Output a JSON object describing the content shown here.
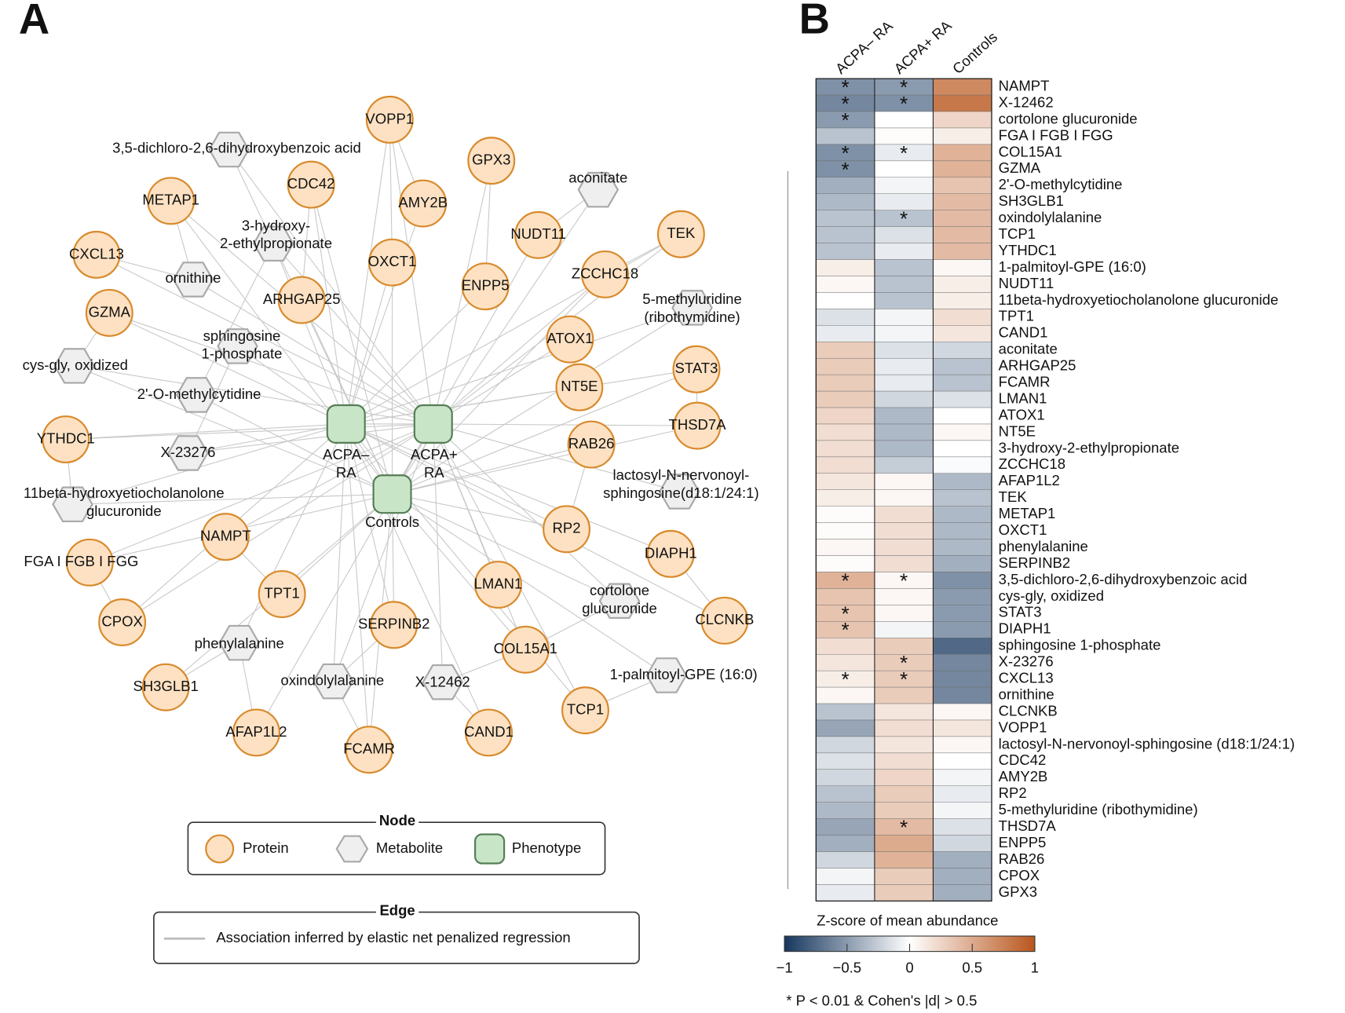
{
  "panel_a": {
    "label": "A",
    "node_styles": {
      "protein": {
        "fill": "#fde1c2",
        "stroke": "#d88a2c"
      },
      "metabolite": {
        "fill": "#efefef",
        "stroke": "#a9a9a9"
      },
      "phenotype": {
        "fill": "#c9e5c8",
        "stroke": "#557d55"
      }
    },
    "nodes": [
      {
        "label": [
          "VOPP1"
        ],
        "kind": "protein"
      },
      {
        "label": [
          "GPX3"
        ],
        "kind": "protein"
      },
      {
        "label": [
          "CDC42"
        ],
        "kind": "protein"
      },
      {
        "label": [
          "AMY2B"
        ],
        "kind": "protein"
      },
      {
        "label": [
          "METAP1"
        ],
        "kind": "protein"
      },
      {
        "label": [
          "NUDT11"
        ],
        "kind": "protein"
      },
      {
        "label": [
          "TEK"
        ],
        "kind": "protein"
      },
      {
        "label": [
          "CXCL13"
        ],
        "kind": "protein"
      },
      {
        "label": [
          "OXCT1"
        ],
        "kind": "protein"
      },
      {
        "label": [
          "ENPP5"
        ],
        "kind": "protein"
      },
      {
        "label": [
          "ZCCHC18"
        ],
        "kind": "protein"
      },
      {
        "label": [
          "ARHGAP25"
        ],
        "kind": "protein"
      },
      {
        "label": [
          "GZMA"
        ],
        "kind": "protein"
      },
      {
        "label": [
          "ATOX1"
        ],
        "kind": "protein"
      },
      {
        "label": [
          "STAT3"
        ],
        "kind": "protein"
      },
      {
        "label": [
          "NT5E"
        ],
        "kind": "protein"
      },
      {
        "label": [
          "THSD7A"
        ],
        "kind": "protein"
      },
      {
        "label": [
          "RAB26"
        ],
        "kind": "protein"
      },
      {
        "label": [
          "YTHDC1"
        ],
        "kind": "protein"
      },
      {
        "label": [
          "NAMPT"
        ],
        "kind": "protein"
      },
      {
        "label": [
          "RP2"
        ],
        "kind": "protein"
      },
      {
        "label": [
          "DIAPH1"
        ],
        "kind": "protein"
      },
      {
        "label": [
          "FGA I FGB I FGG"
        ],
        "kind": "protein"
      },
      {
        "label": [
          "TPT1"
        ],
        "kind": "protein"
      },
      {
        "label": [
          "CPOX"
        ],
        "kind": "protein"
      },
      {
        "label": [
          "LMAN1"
        ],
        "kind": "protein"
      },
      {
        "label": [
          "SERPINB2"
        ],
        "kind": "protein"
      },
      {
        "label": [
          "CLCNKB"
        ],
        "kind": "protein"
      },
      {
        "label": [
          "COL15A1"
        ],
        "kind": "protein"
      },
      {
        "label": [
          "SH3GLB1"
        ],
        "kind": "protein"
      },
      {
        "label": [
          "TCP1"
        ],
        "kind": "protein"
      },
      {
        "label": [
          "AFAP1L2"
        ],
        "kind": "protein"
      },
      {
        "label": [
          "FCAMR"
        ],
        "kind": "protein"
      },
      {
        "label": [
          "CAND1"
        ],
        "kind": "protein"
      },
      {
        "label": [
          "3,5-dichloro-2,6-dihydroxybenzoic acid"
        ],
        "kind": "metabolite"
      },
      {
        "label": [
          "aconitate"
        ],
        "kind": "metabolite"
      },
      {
        "label": [
          "3-hydroxy-",
          "2-ethylpropionate"
        ],
        "kind": "metabolite"
      },
      {
        "label": [
          "ornithine"
        ],
        "kind": "metabolite"
      },
      {
        "label": [
          "5-methyluridine",
          "(ribothymidine)"
        ],
        "kind": "metabolite"
      },
      {
        "label": [
          "sphingosine",
          "1-phosphate"
        ],
        "kind": "metabolite"
      },
      {
        "label": [
          "cys-gly, oxidized"
        ],
        "kind": "metabolite"
      },
      {
        "label": [
          "2'-O-methylcytidine"
        ],
        "kind": "metabolite"
      },
      {
        "label": [
          "X-23276"
        ],
        "kind": "metabolite"
      },
      {
        "label": [
          "lactosyl-N-nervonoyl-",
          "sphingosine(d18:1/24:1)"
        ],
        "kind": "metabolite"
      },
      {
        "label": [
          "11beta-hydroxyetiocholanolone",
          "glucuronide"
        ],
        "kind": "metabolite"
      },
      {
        "label": [
          "phenylalanine"
        ],
        "kind": "metabolite"
      },
      {
        "label": [
          "cortolone",
          "glucuronide"
        ],
        "kind": "metabolite"
      },
      {
        "label": [
          "1-palmitoyl-GPE (16:0)"
        ],
        "kind": "metabolite"
      },
      {
        "label": [
          "oxindolylalanine"
        ],
        "kind": "metabolite"
      },
      {
        "label": [
          "X-12462"
        ],
        "kind": "metabolite"
      },
      {
        "label": [
          "ACPA–",
          "RA"
        ],
        "kind": "phenotype"
      },
      {
        "label": [
          "ACPA+",
          "RA"
        ],
        "kind": "phenotype"
      },
      {
        "label": [
          "Controls"
        ],
        "kind": "phenotype"
      }
    ],
    "legend": {
      "node_title": "Node",
      "node_items": [
        "Protein",
        "Metabolite",
        "Phenotype"
      ],
      "edge_title": "Edge",
      "edge_item": "Association inferred by elastic net penalized regression"
    }
  },
  "chart_data": {
    "type": "heatmap",
    "panel_label": "B",
    "columns": [
      "ACPA– RA",
      "ACPA+ RA",
      "Controls"
    ],
    "rows": [
      "NAMPT",
      "X-12462",
      "cortolone glucuronide",
      "FGA I FGB I FGG",
      "COL15A1",
      "GZMA",
      "2'-O-methylcytidine",
      "SH3GLB1",
      "oxindolylalanine",
      "TCP1",
      "YTHDC1",
      "1-palmitoyl-GPE (16:0)",
      "NUDT11",
      "11beta-hydroxyetiocholanolone glucuronide",
      "TPT1",
      "CAND1",
      "aconitate",
      "ARHGAP25",
      "FCAMR",
      "LMAN1",
      "ATOX1",
      "NT5E",
      "3-hydroxy-2-ethylpropionate",
      "ZCCHC18",
      "AFAP1L2",
      "TEK",
      "METAP1",
      "OXCT1",
      "phenylalanine",
      "SERPINB2",
      "3,5-dichloro-2,6-dihydroxybenzoic acid",
      "cys-gly, oxidized",
      "STAT3",
      "DIAPH1",
      "sphingosine 1-phosphate",
      "X-23276",
      "CXCL13",
      "ornithine",
      "CLCNKB",
      "VOPP1",
      "lactosyl-N-nervonoyl-sphingosine (d18:1/24:1)",
      "CDC42",
      "AMY2B",
      "RP2",
      "5-methyluridine (ribothymidine)",
      "THSD7A",
      "ENPP5",
      "RAB26",
      "CPOX",
      "GPX3"
    ],
    "values": [
      [
        -0.55,
        -0.5,
        0.7
      ],
      [
        -0.6,
        -0.55,
        0.8
      ],
      [
        -0.5,
        0,
        0.25
      ],
      [
        -0.3,
        0.02,
        0.1
      ],
      [
        -0.55,
        -0.1,
        0.45
      ],
      [
        -0.55,
        0,
        0.45
      ],
      [
        -0.4,
        -0.05,
        0.35
      ],
      [
        -0.35,
        -0.1,
        0.4
      ],
      [
        -0.3,
        -0.3,
        0.4
      ],
      [
        -0.3,
        -0.15,
        0.4
      ],
      [
        -0.3,
        -0.1,
        0.4
      ],
      [
        0.1,
        -0.3,
        0.05
      ],
      [
        0.05,
        -0.3,
        0.1
      ],
      [
        0,
        -0.3,
        0.1
      ],
      [
        -0.15,
        -0.05,
        0.2
      ],
      [
        -0.1,
        -0.05,
        0.15
      ],
      [
        0.3,
        -0.15,
        -0.2
      ],
      [
        0.3,
        -0.1,
        -0.3
      ],
      [
        0.3,
        -0.1,
        -0.3
      ],
      [
        0.3,
        -0.2,
        -0.15
      ],
      [
        0.25,
        -0.35,
        0
      ],
      [
        0.2,
        -0.35,
        0.05
      ],
      [
        0.2,
        -0.35,
        0
      ],
      [
        0.2,
        -0.25,
        -0.02
      ],
      [
        0.15,
        0.05,
        -0.35
      ],
      [
        0.1,
        0.05,
        -0.3
      ],
      [
        0.02,
        0.2,
        -0.35
      ],
      [
        0.02,
        0.2,
        -0.35
      ],
      [
        0.05,
        0.2,
        -0.35
      ],
      [
        0.02,
        0.2,
        -0.4
      ],
      [
        0.45,
        0.05,
        -0.55
      ],
      [
        0.35,
        0.05,
        -0.5
      ],
      [
        0.35,
        0.05,
        -0.5
      ],
      [
        0.35,
        -0.05,
        -0.5
      ],
      [
        0.2,
        0.3,
        -0.75
      ],
      [
        0.15,
        0.3,
        -0.6
      ],
      [
        0.1,
        0.3,
        -0.6
      ],
      [
        0.05,
        0.3,
        -0.6
      ],
      [
        -0.3,
        0.15,
        0.05
      ],
      [
        -0.45,
        0.2,
        0.15
      ],
      [
        -0.2,
        0.15,
        0.05
      ],
      [
        -0.15,
        0.2,
        0
      ],
      [
        -0.2,
        0.25,
        -0.05
      ],
      [
        -0.3,
        0.3,
        -0.1
      ],
      [
        -0.35,
        0.3,
        -0.05
      ],
      [
        -0.45,
        0.4,
        -0.15
      ],
      [
        -0.4,
        0.5,
        -0.2
      ],
      [
        -0.2,
        0.45,
        -0.4
      ],
      [
        -0.05,
        0.3,
        -0.4
      ],
      [
        -0.1,
        0.3,
        -0.4
      ]
    ],
    "significant": [
      [
        true,
        true,
        false
      ],
      [
        true,
        true,
        false
      ],
      [
        true,
        false,
        false
      ],
      [
        false,
        false,
        false
      ],
      [
        true,
        true,
        false
      ],
      [
        true,
        false,
        false
      ],
      [
        false,
        false,
        false
      ],
      [
        false,
        false,
        false
      ],
      [
        false,
        true,
        false
      ],
      [
        false,
        false,
        false
      ],
      [
        false,
        false,
        false
      ],
      [
        false,
        false,
        false
      ],
      [
        false,
        false,
        false
      ],
      [
        false,
        false,
        false
      ],
      [
        false,
        false,
        false
      ],
      [
        false,
        false,
        false
      ],
      [
        false,
        false,
        false
      ],
      [
        false,
        false,
        false
      ],
      [
        false,
        false,
        false
      ],
      [
        false,
        false,
        false
      ],
      [
        false,
        false,
        false
      ],
      [
        false,
        false,
        false
      ],
      [
        false,
        false,
        false
      ],
      [
        false,
        false,
        false
      ],
      [
        false,
        false,
        false
      ],
      [
        false,
        false,
        false
      ],
      [
        false,
        false,
        false
      ],
      [
        false,
        false,
        false
      ],
      [
        false,
        false,
        false
      ],
      [
        false,
        false,
        false
      ],
      [
        true,
        true,
        false
      ],
      [
        false,
        false,
        false
      ],
      [
        true,
        false,
        false
      ],
      [
        true,
        false,
        false
      ],
      [
        false,
        false,
        false
      ],
      [
        false,
        true,
        false
      ],
      [
        true,
        true,
        false
      ],
      [
        false,
        false,
        false
      ],
      [
        false,
        false,
        false
      ],
      [
        false,
        false,
        false
      ],
      [
        false,
        false,
        false
      ],
      [
        false,
        false,
        false
      ],
      [
        false,
        false,
        false
      ],
      [
        false,
        false,
        false
      ],
      [
        false,
        false,
        false
      ],
      [
        false,
        true,
        false
      ],
      [
        false,
        false,
        false
      ],
      [
        false,
        false,
        false
      ],
      [
        false,
        false,
        false
      ],
      [
        false,
        false,
        false
      ]
    ],
    "star": "*",
    "colorbar": {
      "title": "Z-score of mean abundance",
      "lim": [
        -1,
        1
      ],
      "ticks": [
        {
          "value": -1,
          "label": "−1"
        },
        {
          "value": -0.5,
          "label": "−0.5"
        },
        0,
        0.5,
        1
      ],
      "colors": [
        "#17375e",
        "#ffffff",
        "#b9561d"
      ]
    },
    "footnote": "* P < 0.01 & Cohen's |d| > 0.5"
  }
}
